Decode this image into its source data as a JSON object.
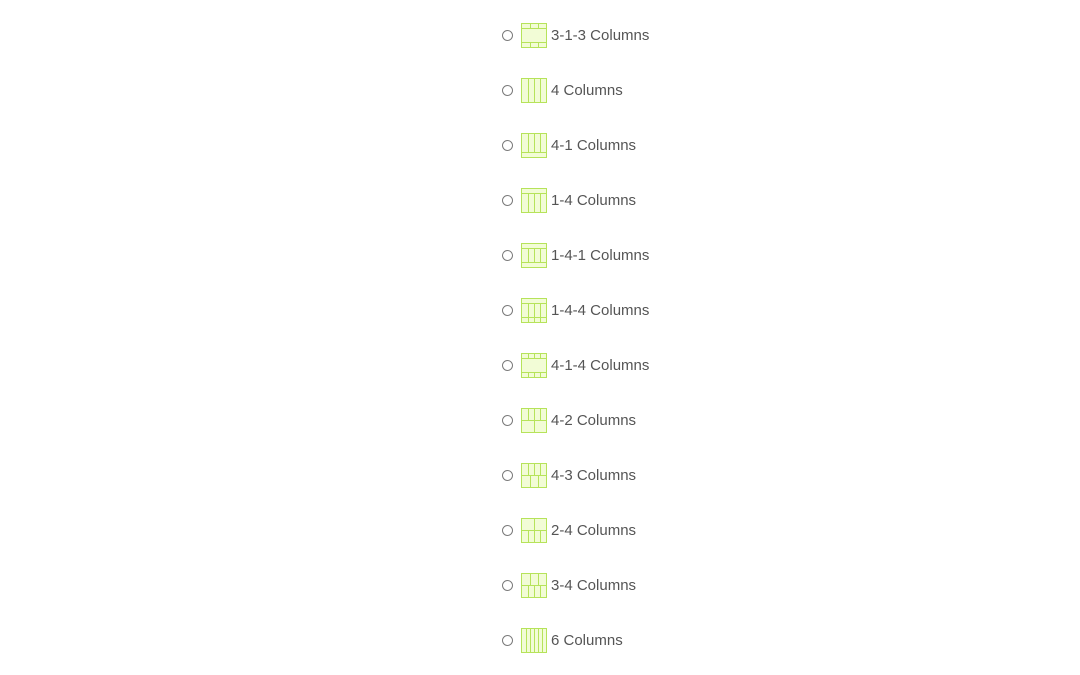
{
  "colors": {
    "icon_fill": "#f2fcd6",
    "icon_stroke": "#b6e35a",
    "label_text": "#555555",
    "radio_border": "#7a7a7a"
  },
  "layout_options": [
    {
      "label": "3-1-3 Columns",
      "icon": "layout-3-1-3-icon",
      "top": 3,
      "middle": 1,
      "bottom": 3,
      "checked": false
    },
    {
      "label": "4 Columns",
      "icon": "layout-4-icon",
      "top": 0,
      "middle": 4,
      "bottom": 0,
      "checked": false
    },
    {
      "label": "4-1 Columns",
      "icon": "layout-4-1-icon",
      "top": 0,
      "middle": 4,
      "bottom": 1,
      "checked": false
    },
    {
      "label": "1-4 Columns",
      "icon": "layout-1-4-icon",
      "top": 1,
      "middle": 4,
      "bottom": 0,
      "checked": false
    },
    {
      "label": "1-4-1 Columns",
      "icon": "layout-1-4-1-icon",
      "top": 1,
      "middle": 4,
      "bottom": 1,
      "checked": false
    },
    {
      "label": "1-4-4 Columns",
      "icon": "layout-1-4-4-icon",
      "top": 1,
      "middle": 4,
      "bottom": 4,
      "checked": false
    },
    {
      "label": "4-1-4 Columns",
      "icon": "layout-4-1-4-icon",
      "top": 4,
      "middle": 1,
      "bottom": 4,
      "checked": false
    },
    {
      "label": "4-2 Columns",
      "icon": "layout-4-2-icon",
      "top": 4,
      "middle": 0,
      "bottom": 2,
      "checked": false
    },
    {
      "label": "4-3 Columns",
      "icon": "layout-4-3-icon",
      "top": 4,
      "middle": 0,
      "bottom": 3,
      "checked": false
    },
    {
      "label": "2-4 Columns",
      "icon": "layout-2-4-icon",
      "top": 2,
      "middle": 0,
      "bottom": 4,
      "checked": false
    },
    {
      "label": "3-4 Columns",
      "icon": "layout-3-4-icon",
      "top": 3,
      "middle": 0,
      "bottom": 4,
      "checked": false
    },
    {
      "label": "6 Columns",
      "icon": "layout-6-icon",
      "top": 0,
      "middle": 6,
      "bottom": 0,
      "checked": false
    }
  ]
}
